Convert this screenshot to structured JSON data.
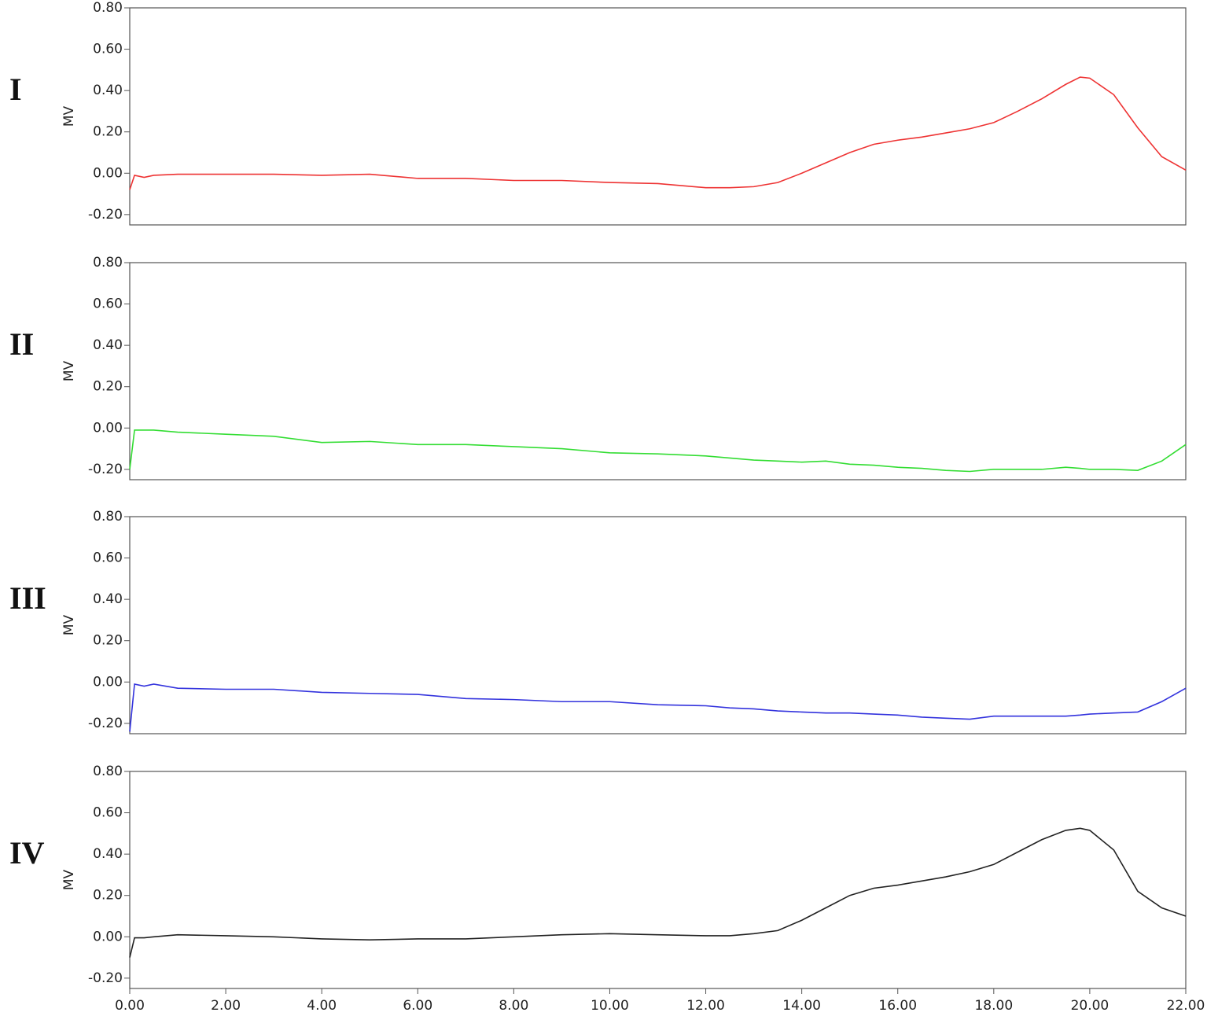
{
  "chart_data": [
    {
      "type": "line",
      "title": "I",
      "ylabel": "MV",
      "x": [
        0,
        0.1,
        0.3,
        0.5,
        1,
        2,
        3,
        4,
        5,
        6,
        7,
        8,
        9,
        10,
        11,
        12,
        12.5,
        13,
        13.5,
        14,
        14.5,
        15,
        15.5,
        16,
        16.5,
        17,
        17.5,
        18,
        18.5,
        19,
        19.5,
        19.8,
        20,
        20.5,
        21,
        21.5,
        22
      ],
      "series": [
        {
          "color": "#ee3333",
          "values": [
            -0.08,
            -0.01,
            -0.02,
            -0.01,
            -0.005,
            -0.005,
            -0.005,
            -0.01,
            -0.005,
            -0.025,
            -0.025,
            -0.035,
            -0.035,
            -0.045,
            -0.05,
            -0.07,
            -0.07,
            -0.065,
            -0.045,
            0.0,
            0.05,
            0.1,
            0.14,
            0.16,
            0.175,
            0.195,
            0.215,
            0.245,
            0.3,
            0.36,
            0.43,
            0.465,
            0.46,
            0.38,
            0.22,
            0.08,
            0.015
          ]
        }
      ],
      "xlim": [
        0,
        22
      ],
      "ylim": [
        -0.25,
        0.8
      ],
      "yticks": [
        {
          "value": -0.2,
          "label": "-0.20"
        },
        {
          "value": 0,
          "label": "0.00"
        },
        {
          "value": 0.2,
          "label": "0.20"
        },
        {
          "value": 0.4,
          "label": "0.40"
        },
        {
          "value": 0.6,
          "label": "0.60"
        },
        {
          "value": 0.8,
          "label": "0.80"
        }
      ]
    },
    {
      "type": "line",
      "title": "II",
      "ylabel": "MV",
      "x": [
        0,
        0.1,
        0.3,
        0.5,
        1,
        2,
        3,
        4,
        5,
        6,
        7,
        8,
        9,
        10,
        11,
        12,
        12.5,
        13,
        13.5,
        14,
        14.5,
        15,
        15.5,
        16,
        16.5,
        17,
        17.5,
        18,
        18.5,
        19,
        19.5,
        19.8,
        20,
        20.5,
        21,
        21.5,
        22
      ],
      "series": [
        {
          "color": "#33dd33",
          "values": [
            -0.2,
            -0.01,
            -0.01,
            -0.01,
            -0.02,
            -0.03,
            -0.04,
            -0.07,
            -0.065,
            -0.08,
            -0.08,
            -0.09,
            -0.1,
            -0.12,
            -0.125,
            -0.135,
            -0.145,
            -0.155,
            -0.16,
            -0.165,
            -0.16,
            -0.175,
            -0.18,
            -0.19,
            -0.195,
            -0.205,
            -0.21,
            -0.2,
            -0.2,
            -0.2,
            -0.19,
            -0.195,
            -0.2,
            -0.2,
            -0.205,
            -0.16,
            -0.08
          ]
        }
      ],
      "xlim": [
        0,
        22
      ],
      "ylim": [
        -0.25,
        0.8
      ],
      "yticks": [
        {
          "value": -0.2,
          "label": "-0.20"
        },
        {
          "value": 0,
          "label": "0.00"
        },
        {
          "value": 0.2,
          "label": "0.20"
        },
        {
          "value": 0.4,
          "label": "0.40"
        },
        {
          "value": 0.6,
          "label": "0.60"
        },
        {
          "value": 0.8,
          "label": "0.80"
        }
      ]
    },
    {
      "type": "line",
      "title": "III",
      "ylabel": "MV",
      "x": [
        0,
        0.1,
        0.3,
        0.5,
        1,
        2,
        3,
        4,
        5,
        6,
        7,
        8,
        9,
        10,
        11,
        12,
        12.5,
        13,
        13.5,
        14,
        14.5,
        15,
        15.5,
        16,
        16.5,
        17,
        17.5,
        18,
        18.5,
        19,
        19.5,
        19.8,
        20,
        20.5,
        21,
        21.5,
        22
      ],
      "series": [
        {
          "color": "#3333dd",
          "values": [
            -0.24,
            -0.01,
            -0.02,
            -0.01,
            -0.03,
            -0.035,
            -0.035,
            -0.05,
            -0.055,
            -0.06,
            -0.08,
            -0.085,
            -0.095,
            -0.095,
            -0.11,
            -0.115,
            -0.125,
            -0.13,
            -0.14,
            -0.145,
            -0.15,
            -0.15,
            -0.155,
            -0.16,
            -0.17,
            -0.175,
            -0.18,
            -0.165,
            -0.165,
            -0.165,
            -0.165,
            -0.16,
            -0.155,
            -0.15,
            -0.145,
            -0.095,
            -0.03
          ]
        }
      ],
      "xlim": [
        0,
        22
      ],
      "ylim": [
        -0.25,
        0.8
      ],
      "yticks": [
        {
          "value": -0.2,
          "label": "-0.20"
        },
        {
          "value": 0,
          "label": "0.00"
        },
        {
          "value": 0.2,
          "label": "0.20"
        },
        {
          "value": 0.4,
          "label": "0.40"
        },
        {
          "value": 0.6,
          "label": "0.60"
        },
        {
          "value": 0.8,
          "label": "0.80"
        }
      ]
    },
    {
      "type": "line",
      "title": "IV",
      "ylabel": "MV",
      "x": [
        0,
        0.1,
        0.3,
        0.5,
        1,
        2,
        3,
        4,
        5,
        6,
        7,
        8,
        9,
        10,
        11,
        12,
        12.5,
        13,
        13.5,
        14,
        14.5,
        15,
        15.5,
        16,
        16.5,
        17,
        17.5,
        18,
        18.5,
        19,
        19.5,
        19.8,
        20,
        20.5,
        21,
        21.5,
        22
      ],
      "series": [
        {
          "color": "#222222",
          "values": [
            -0.1,
            -0.005,
            -0.005,
            0.0,
            0.01,
            0.005,
            0.0,
            -0.01,
            -0.015,
            -0.01,
            -0.01,
            0.0,
            0.01,
            0.015,
            0.01,
            0.005,
            0.005,
            0.015,
            0.03,
            0.08,
            0.14,
            0.2,
            0.235,
            0.25,
            0.27,
            0.29,
            0.315,
            0.35,
            0.41,
            0.47,
            0.515,
            0.525,
            0.515,
            0.42,
            0.22,
            0.14,
            0.1
          ]
        }
      ],
      "xlim": [
        0,
        22
      ],
      "ylim": [
        -0.25,
        0.8
      ],
      "yticks": [
        {
          "value": -0.2,
          "label": "-0.20"
        },
        {
          "value": 0,
          "label": "0.00"
        },
        {
          "value": 0.2,
          "label": "0.20"
        },
        {
          "value": 0.4,
          "label": "0.40"
        },
        {
          "value": 0.6,
          "label": "0.60"
        },
        {
          "value": 0.8,
          "label": "0.80"
        }
      ],
      "xticks": [
        {
          "value": 0,
          "label": "0.00"
        },
        {
          "value": 2,
          "label": "2.00"
        },
        {
          "value": 4,
          "label": "4.00"
        },
        {
          "value": 6,
          "label": "6.00"
        },
        {
          "value": 8,
          "label": "8.00"
        },
        {
          "value": 10,
          "label": "10.00"
        },
        {
          "value": 12,
          "label": "12.00"
        },
        {
          "value": 14,
          "label": "14.00"
        },
        {
          "value": 16,
          "label": "16.00"
        },
        {
          "value": 18,
          "label": "18.00"
        },
        {
          "value": 20,
          "label": "20.00"
        },
        {
          "value": 22,
          "label": "22.00"
        }
      ]
    }
  ]
}
